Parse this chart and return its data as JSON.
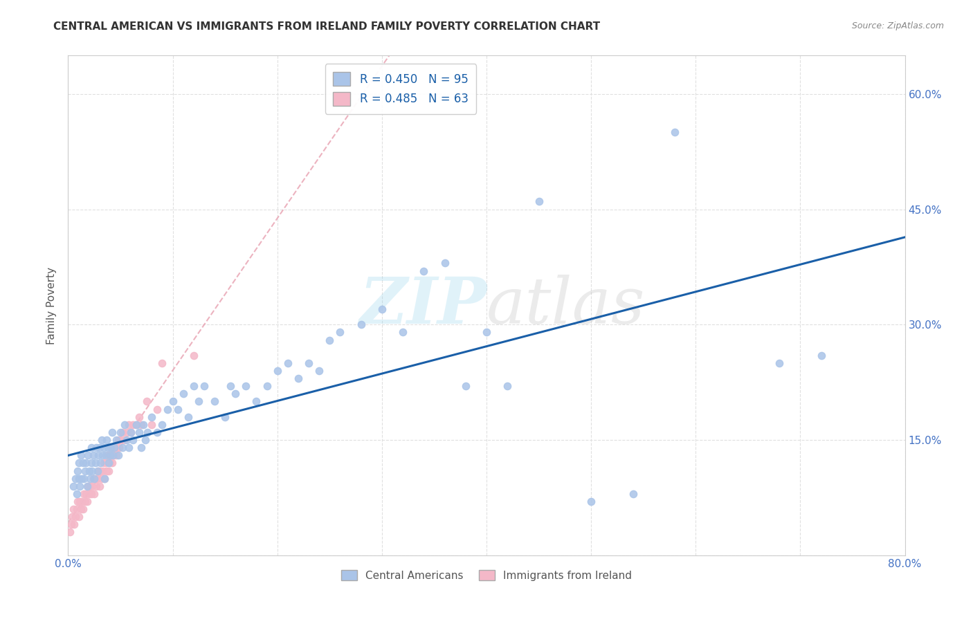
{
  "title": "CENTRAL AMERICAN VS IMMIGRANTS FROM IRELAND FAMILY POVERTY CORRELATION CHART",
  "source": "Source: ZipAtlas.com",
  "ylabel": "Family Poverty",
  "xlim": [
    0.0,
    0.8
  ],
  "ylim": [
    0.0,
    0.65
  ],
  "background_color": "#ffffff",
  "grid_color": "#e0e0e0",
  "watermark_text": "ZIPatlas",
  "ca_color": "#aac4e8",
  "ca_line_color": "#1a5fa8",
  "ire_color": "#f4b8c8",
  "ire_line_color": "#f4b8c8",
  "ca_R": 0.45,
  "ca_N": 95,
  "ire_R": 0.485,
  "ire_N": 63,
  "legend_text_color": "#1a5fa8",
  "tick_color": "#4472c4",
  "ca_x": [
    0.005,
    0.007,
    0.008,
    0.009,
    0.01,
    0.01,
    0.011,
    0.012,
    0.013,
    0.014,
    0.015,
    0.016,
    0.017,
    0.018,
    0.019,
    0.02,
    0.021,
    0.022,
    0.022,
    0.023,
    0.024,
    0.025,
    0.026,
    0.027,
    0.028,
    0.029,
    0.03,
    0.031,
    0.032,
    0.033,
    0.034,
    0.035,
    0.036,
    0.037,
    0.038,
    0.039,
    0.04,
    0.041,
    0.042,
    0.043,
    0.044,
    0.046,
    0.048,
    0.05,
    0.052,
    0.054,
    0.056,
    0.058,
    0.06,
    0.062,
    0.065,
    0.068,
    0.07,
    0.072,
    0.074,
    0.076,
    0.08,
    0.085,
    0.09,
    0.095,
    0.1,
    0.105,
    0.11,
    0.115,
    0.12,
    0.125,
    0.13,
    0.14,
    0.15,
    0.155,
    0.16,
    0.17,
    0.18,
    0.19,
    0.2,
    0.21,
    0.22,
    0.23,
    0.24,
    0.25,
    0.26,
    0.28,
    0.3,
    0.32,
    0.34,
    0.36,
    0.38,
    0.4,
    0.42,
    0.45,
    0.5,
    0.54,
    0.58,
    0.68,
    0.72
  ],
  "ca_y": [
    0.09,
    0.1,
    0.08,
    0.11,
    0.1,
    0.12,
    0.09,
    0.13,
    0.1,
    0.12,
    0.1,
    0.11,
    0.12,
    0.09,
    0.13,
    0.11,
    0.1,
    0.12,
    0.14,
    0.11,
    0.13,
    0.1,
    0.12,
    0.14,
    0.11,
    0.13,
    0.14,
    0.12,
    0.15,
    0.13,
    0.14,
    0.1,
    0.13,
    0.15,
    0.14,
    0.12,
    0.13,
    0.14,
    0.16,
    0.13,
    0.14,
    0.15,
    0.13,
    0.16,
    0.14,
    0.17,
    0.15,
    0.14,
    0.16,
    0.15,
    0.17,
    0.16,
    0.14,
    0.17,
    0.15,
    0.16,
    0.18,
    0.16,
    0.17,
    0.19,
    0.2,
    0.19,
    0.21,
    0.18,
    0.22,
    0.2,
    0.22,
    0.2,
    0.18,
    0.22,
    0.21,
    0.22,
    0.2,
    0.22,
    0.24,
    0.25,
    0.23,
    0.25,
    0.24,
    0.28,
    0.29,
    0.3,
    0.32,
    0.29,
    0.37,
    0.38,
    0.22,
    0.29,
    0.22,
    0.46,
    0.07,
    0.08,
    0.55,
    0.25,
    0.26
  ],
  "ire_x": [
    0.002,
    0.003,
    0.004,
    0.005,
    0.006,
    0.007,
    0.008,
    0.009,
    0.01,
    0.011,
    0.012,
    0.013,
    0.014,
    0.015,
    0.016,
    0.017,
    0.018,
    0.019,
    0.02,
    0.021,
    0.022,
    0.023,
    0.024,
    0.025,
    0.026,
    0.027,
    0.028,
    0.029,
    0.03,
    0.031,
    0.032,
    0.033,
    0.034,
    0.035,
    0.036,
    0.037,
    0.038,
    0.039,
    0.04,
    0.041,
    0.042,
    0.043,
    0.044,
    0.045,
    0.046,
    0.047,
    0.048,
    0.049,
    0.05,
    0.052,
    0.054,
    0.056,
    0.058,
    0.06,
    0.062,
    0.065,
    0.068,
    0.07,
    0.075,
    0.08,
    0.085,
    0.09,
    0.12
  ],
  "ire_y": [
    0.03,
    0.04,
    0.05,
    0.06,
    0.04,
    0.05,
    0.06,
    0.07,
    0.05,
    0.07,
    0.06,
    0.07,
    0.06,
    0.08,
    0.07,
    0.08,
    0.07,
    0.09,
    0.08,
    0.09,
    0.08,
    0.09,
    0.1,
    0.08,
    0.1,
    0.09,
    0.1,
    0.11,
    0.09,
    0.11,
    0.1,
    0.11,
    0.12,
    0.1,
    0.12,
    0.11,
    0.13,
    0.11,
    0.12,
    0.13,
    0.12,
    0.14,
    0.13,
    0.14,
    0.13,
    0.14,
    0.15,
    0.14,
    0.15,
    0.16,
    0.15,
    0.16,
    0.17,
    0.16,
    0.17,
    0.17,
    0.18,
    0.17,
    0.2,
    0.17,
    0.19,
    0.25,
    0.26
  ]
}
